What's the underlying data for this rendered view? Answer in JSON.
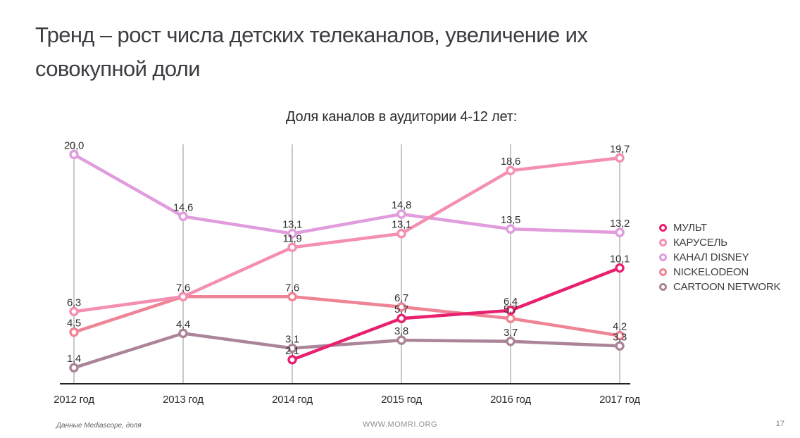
{
  "slide": {
    "title": "Тренд – рост числа детских телеканалов, увеличение их совокупной доли",
    "footer_left": "Данные Mediascope, доля",
    "footer_center": "WWW.MOMRI.ORG",
    "page_number": "17"
  },
  "chart_data": {
    "type": "line",
    "title": "Доля каналов в аудитории 4-12 лет:",
    "categories": [
      "2012 год",
      "2013 год",
      "2014 год",
      "2015 год",
      "2016 год",
      "2017 год"
    ],
    "series": [
      {
        "name": "МУЛЬТ",
        "color": "#e8206e",
        "values": [
          null,
          null,
          2.1,
          5.7,
          6.4,
          10.1
        ]
      },
      {
        "name": "КАРУСЕЛЬ",
        "color": "#f48fb3",
        "values": [
          6.3,
          7.6,
          11.9,
          13.1,
          18.6,
          19.7
        ]
      },
      {
        "name": "КАНАЛ DISNEY",
        "color": "#e09cdc",
        "values": [
          20.0,
          14.6,
          13.1,
          14.8,
          13.5,
          13.2
        ]
      },
      {
        "name": "NICKELODEON",
        "color": "#ee8495",
        "values": [
          4.5,
          7.6,
          7.6,
          6.7,
          5.7,
          4.2
        ]
      },
      {
        "name": "CARTOON NETWORK",
        "color": "#ab8499",
        "values": [
          1.4,
          4.4,
          3.1,
          3.8,
          3.7,
          3.3
        ]
      }
    ],
    "ylim": [
      0,
      21.5
    ],
    "grid": "vertical",
    "legend_position": "right",
    "value_labels": true,
    "decimal_separator": ",",
    "colors": {
      "gridline": "#909090",
      "axis": "#222222",
      "value_label": "#303030",
      "category_label": "#2b2b2e"
    }
  }
}
